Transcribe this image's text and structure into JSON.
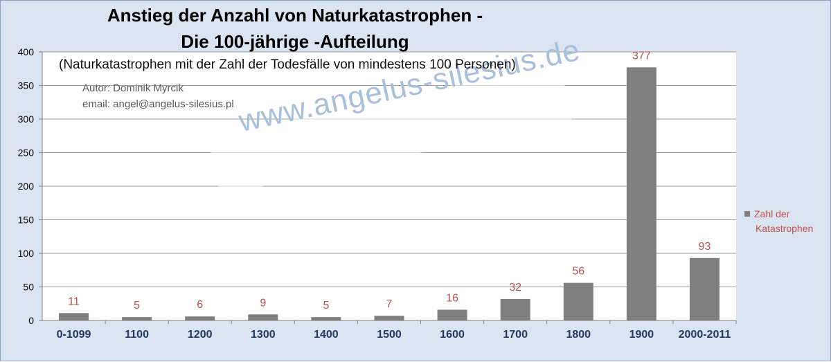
{
  "chart_data": {
    "type": "bar",
    "title": "Anstieg der Anzahl von Naturkatastrophen -",
    "title_line2": "Die 100-jährige -Aufteilung",
    "subtitle": "(Naturkatastrophen mit der Zahl der Todesfälle von mindestens 100 Personen)",
    "author": "Autor:  Dominik Myrcik",
    "email": "email:  angel@angelus-silesius.pl",
    "watermark": "www.angelus-silesius.de",
    "categories": [
      "0-1099",
      "1100",
      "1200",
      "1300",
      "1400",
      "1500",
      "1600",
      "1700",
      "1800",
      "1900",
      "2000-2011"
    ],
    "series": [
      {
        "name": "Zahl der Katastrophen",
        "legend_line1": "Zahl der",
        "legend_line2": "Katastrophen",
        "values": [
          11,
          5,
          6,
          9,
          5,
          7,
          16,
          32,
          56,
          377,
          93
        ],
        "color": "#7f7f7f",
        "label_color": "#c0504d"
      }
    ],
    "ylim": [
      0,
      400
    ],
    "yticks": [
      0,
      50,
      100,
      150,
      200,
      250,
      300,
      350,
      400
    ],
    "xlabel": "",
    "ylabel": "",
    "grid": true,
    "legend_position": "right",
    "category_label_color": "#1f3864"
  }
}
